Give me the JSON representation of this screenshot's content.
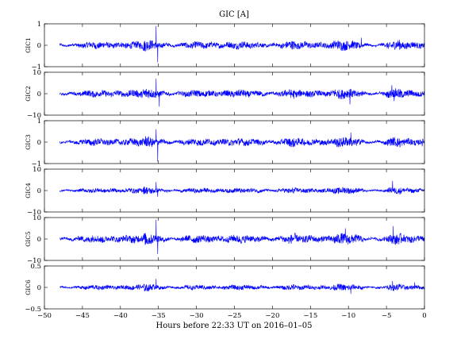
{
  "chart_data": {
    "type": "line",
    "title": "GIC [A]",
    "xlabel": "Hours before  22:33 UT on 2016–01–05",
    "xlim": [
      -50,
      0
    ],
    "xticks": [
      -50,
      -45,
      -40,
      -35,
      -30,
      -25,
      -20,
      -15,
      -10,
      -5,
      0
    ],
    "x_data_range": [
      -48,
      0
    ],
    "line_color": "#0000ff",
    "grid": false,
    "legend": "none",
    "panels": [
      {
        "name": "GIC1",
        "ylim": [
          -1,
          1
        ],
        "yticks": [
          -1,
          0,
          1
        ],
        "typical_amplitude": 0.12,
        "peak_events": [
          {
            "x": -35.3,
            "value": 0.9
          },
          {
            "x": -35.1,
            "value": -0.8
          },
          {
            "x": -8.3,
            "value": 0.35
          },
          {
            "x": -0.6,
            "value": -0.15
          }
        ]
      },
      {
        "name": "GIC2",
        "ylim": [
          -10,
          10
        ],
        "yticks": [
          -10,
          0,
          10
        ],
        "typical_amplitude": 1.2,
        "peak_events": [
          {
            "x": -35.3,
            "value": 7
          },
          {
            "x": -34.9,
            "value": -6
          },
          {
            "x": -9.8,
            "value": -5
          },
          {
            "x": -4.3,
            "value": 4
          },
          {
            "x": -4.0,
            "value": -3.5
          }
        ]
      },
      {
        "name": "GIC3",
        "ylim": [
          -1,
          1
        ],
        "yticks": [
          -1,
          0,
          1
        ],
        "typical_amplitude": 0.12,
        "peak_events": [
          {
            "x": -35.3,
            "value": 0.6
          },
          {
            "x": -35.1,
            "value": -0.9
          },
          {
            "x": -9.7,
            "value": 0.45
          },
          {
            "x": -0.3,
            "value": -0.2
          }
        ]
      },
      {
        "name": "GIC4",
        "ylim": [
          -10,
          10
        ],
        "yticks": [
          -10,
          0,
          10
        ],
        "typical_amplitude": 0.8,
        "peak_events": [
          {
            "x": -35.3,
            "value": 4
          },
          {
            "x": -35.1,
            "value": -3
          },
          {
            "x": -4.2,
            "value": 4.5
          }
        ]
      },
      {
        "name": "GIC5",
        "ylim": [
          -10,
          10
        ],
        "yticks": [
          -10,
          0,
          10
        ],
        "typical_amplitude": 1.3,
        "peak_events": [
          {
            "x": -35.3,
            "value": 9
          },
          {
            "x": -35.1,
            "value": -7
          },
          {
            "x": -10.4,
            "value": 5
          },
          {
            "x": -4.1,
            "value": 6
          }
        ]
      },
      {
        "name": "GIC6",
        "ylim": [
          -0.5,
          0.5
        ],
        "yticks": [
          -0.5,
          0,
          0.5
        ],
        "typical_amplitude": 0.04,
        "peak_events": [
          {
            "x": -35.3,
            "value": 0.2
          },
          {
            "x": -9.7,
            "value": -0.15
          },
          {
            "x": -4.2,
            "value": 0.15
          },
          {
            "x": -1.3,
            "value": 0.12
          }
        ]
      }
    ]
  }
}
